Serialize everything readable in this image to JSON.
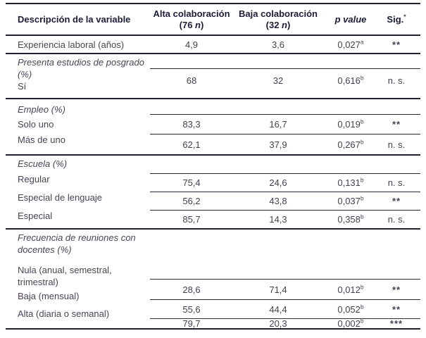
{
  "header": {
    "desc": "Descripción de la variable",
    "alta_line1": "Alta colaboración",
    "alta_pre": "(76 ",
    "baja_line1": "Baja colaboración",
    "baja_pre": "(32 ",
    "n_label": "n",
    "paren_close": ")",
    "p_value": "p value",
    "sig": "Sig.",
    "sig_star": "*"
  },
  "sections": [
    {
      "label": "Experiencia laboral (años)",
      "rows": [
        {
          "alta": "4,9",
          "baja": "3,6",
          "p": "0,027",
          "sup": "a",
          "sig": "**"
        }
      ]
    },
    {
      "title": "Presenta estudios de posgrado (%)",
      "labels": [
        "Sí"
      ],
      "rows": [
        {
          "alta": "68",
          "baja": "32",
          "p": "0,616",
          "sup": "b",
          "sig": "n. s."
        }
      ]
    },
    {
      "title": "Empleo (%)",
      "labels": [
        "Solo uno",
        "Más de uno"
      ],
      "rows": [
        {
          "alta": "83,3",
          "baja": "16,7",
          "p": "0,019",
          "sup": "b",
          "sig": "**"
        },
        {
          "alta": "62,1",
          "baja": "37,9",
          "p": "0,267",
          "sup": "b",
          "sig": "n. s."
        }
      ]
    },
    {
      "title": "Escuela (%)",
      "labels": [
        "Regular",
        "Especial de lenguaje",
        "Especial"
      ],
      "rows": [
        {
          "alta": "75,4",
          "baja": "24,6",
          "p": "0,131",
          "sup": "b",
          "sig": "n. s."
        },
        {
          "alta": "56,2",
          "baja": "43,8",
          "p": "0,037",
          "sup": "b",
          "sig": "**"
        },
        {
          "alta": "85,7",
          "baja": "14,3",
          "p": "0,358",
          "sup": "b",
          "sig": "n. s."
        }
      ]
    },
    {
      "title": "Frecuencia de reuniones con docentes (%)",
      "labels": [
        "Nula (anual, semestral, trimestral)",
        "Baja (mensual)",
        "Alta (diaria o semanal)"
      ],
      "rows": [
        {
          "alta": "28,6",
          "baja": "71,4",
          "p": "0,012",
          "sup": "b",
          "sig": "**"
        },
        {
          "alta": "55,6",
          "baja": "44,4",
          "p": "0,052",
          "sup": "b",
          "sig": "**"
        },
        {
          "alta": "79,7",
          "baja": "20,3",
          "p": "0,002",
          "sup": "b",
          "sig": "***"
        }
      ]
    }
  ],
  "colors": {
    "rule": "#201f33",
    "header_text": "#1c1b38",
    "body_text": "#4a4455"
  }
}
